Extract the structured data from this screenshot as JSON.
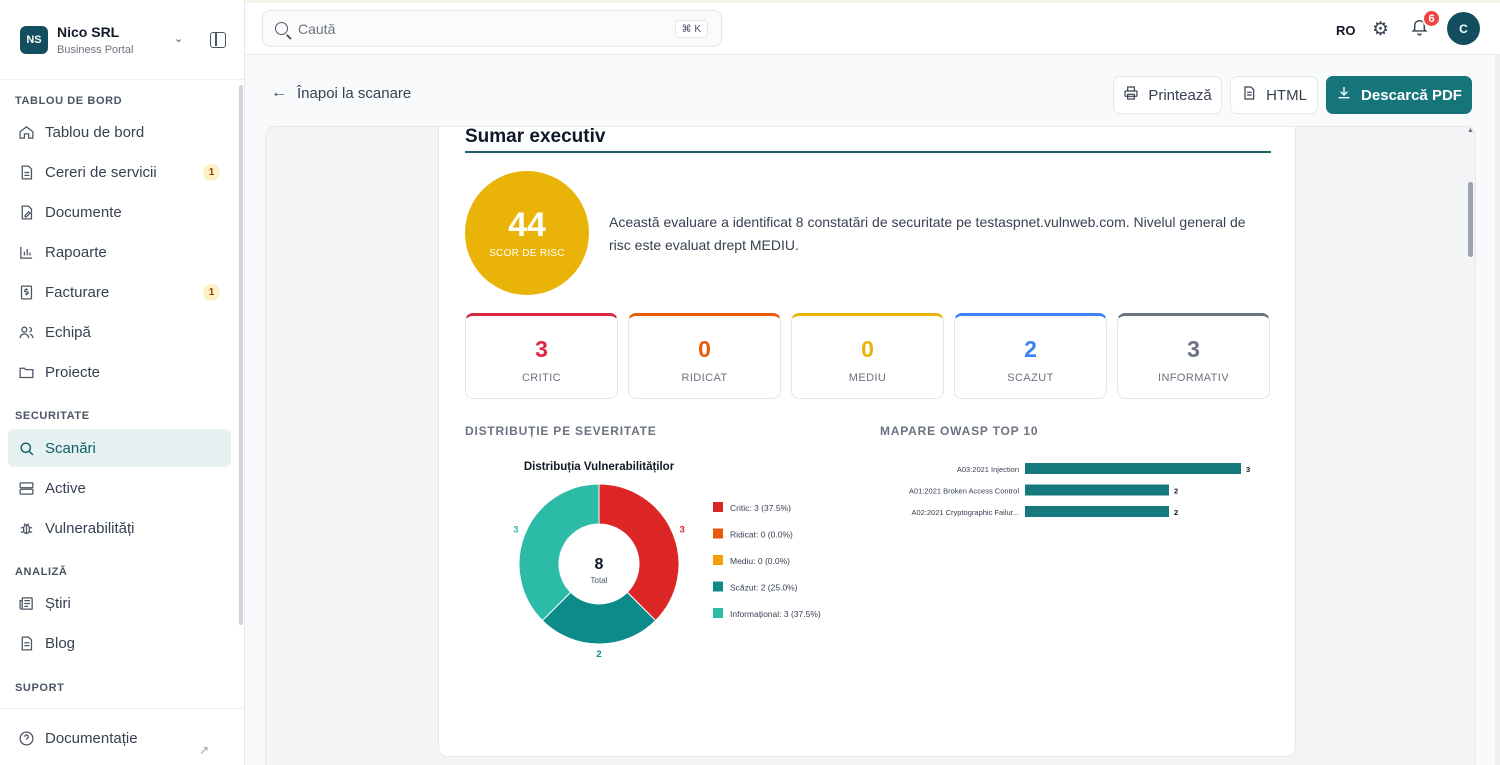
{
  "brand": {
    "initials": "NS",
    "name": "Nico SRL",
    "subtitle": "Business Portal"
  },
  "sidebar": {
    "sections": [
      {
        "title": "TABLOU DE BORD"
      },
      {
        "title": "SECURITATE"
      },
      {
        "title": "ANALIZĂ"
      },
      {
        "title": "SUPORT"
      }
    ],
    "items": [
      {
        "label": "Tablou de bord",
        "icon": "home-icon"
      },
      {
        "label": "Cereri de servicii",
        "icon": "file-icon",
        "badge": "1"
      },
      {
        "label": "Documente",
        "icon": "edit-icon"
      },
      {
        "label": "Rapoarte",
        "icon": "chart-icon"
      },
      {
        "label": "Facturare",
        "icon": "dollar-icon",
        "badge": "1"
      },
      {
        "label": "Echipă",
        "icon": "users-icon"
      },
      {
        "label": "Proiecte",
        "icon": "folder-icon"
      },
      {
        "label": "Scanări",
        "icon": "search-icon",
        "active": true
      },
      {
        "label": "Active",
        "icon": "server-icon"
      },
      {
        "label": "Vulnerabilități",
        "icon": "bug-icon"
      },
      {
        "label": "Știri",
        "icon": "news-icon"
      },
      {
        "label": "Blog",
        "icon": "document-icon"
      }
    ],
    "footer": {
      "label": "Documentație",
      "icon": "help-icon"
    }
  },
  "topbar": {
    "search_placeholder": "Caută",
    "shortcut": "⌘ K",
    "language": "RO",
    "notifications_count": "6",
    "avatar_initial": "C"
  },
  "toolbar": {
    "back_label": "Înapoi la scanare",
    "print_label": "Printează",
    "html_label": "HTML",
    "pdf_label": "Descarcă PDF"
  },
  "report": {
    "section_title": "Sumar executiv",
    "risk_score": "44",
    "risk_score_label": "SCOR DE RISC",
    "summary": "Această evaluare a identificat 8 constatări de securitate pe testaspnet.vulnweb.com. Nivelul general de risc este evaluat drept MEDIU.",
    "severity_cards": [
      {
        "value": "3",
        "label": "CRITIC",
        "color": "#dc2643"
      },
      {
        "value": "0",
        "label": "RIDICAT",
        "color": "#ea580c"
      },
      {
        "value": "0",
        "label": "MEDIU",
        "color": "#e9b308"
      },
      {
        "value": "2",
        "label": "SCAZUT",
        "color": "#3b82f6"
      },
      {
        "value": "3",
        "label": "INFORMATIV",
        "color": "#6b7280"
      }
    ],
    "distribution_heading": "DISTRIBUȚIE PE SEVERITATE",
    "owasp_heading": "MAPARE OWASP TOP 10"
  },
  "chart_data": [
    {
      "type": "pie",
      "title": "Distribuția Vulnerabilităților",
      "center_value": "8",
      "center_label": "Total",
      "categories": [
        "Critic",
        "Ridicat",
        "Mediu",
        "Scăzut",
        "Informațional"
      ],
      "values": [
        3,
        0,
        0,
        2,
        3
      ],
      "legend": [
        "Critic: 3 (37.5%)",
        "Ridicat: 0 (0.0%)",
        "Mediu: 0 (0.0%)",
        "Scăzut: 2 (25.0%)",
        "Informațional: 3 (37.5%)"
      ],
      "colors": [
        "#dc2626",
        "#ea580c",
        "#f59e0b",
        "#0d8a8a",
        "#2bbba7"
      ],
      "legend_placement": "right"
    },
    {
      "type": "bar",
      "orientation": "horizontal",
      "categories": [
        "A03:2021 Injection",
        "A01:2021 Broken Access Control",
        "A02:2021 Cryptographic Failur..."
      ],
      "values": [
        3,
        2,
        2
      ],
      "color": "#16797e",
      "xlim": [
        0,
        3
      ]
    }
  ]
}
